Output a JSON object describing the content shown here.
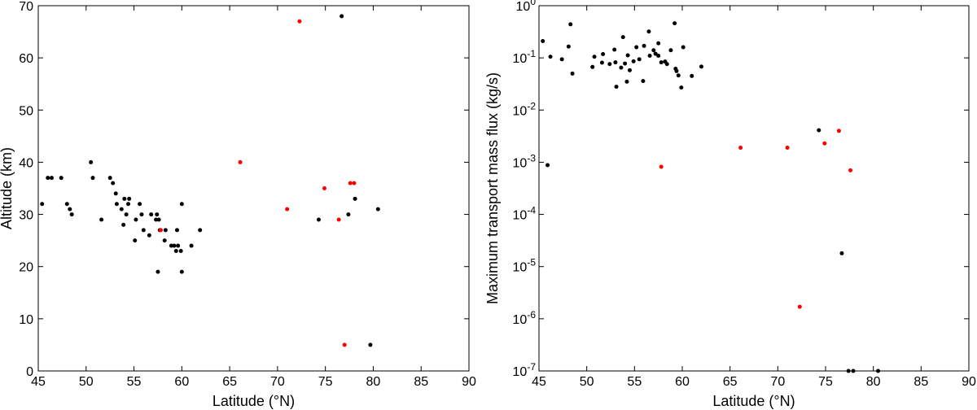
{
  "chart_data": [
    {
      "type": "scatter",
      "title": "",
      "xlabel": "Latitude (°N)",
      "ylabel": "Altitude (km)",
      "xlim": [
        45,
        90
      ],
      "ylim": [
        0,
        70
      ],
      "yscale": "linear",
      "grid": false,
      "x_ticks": [
        "45",
        "50",
        "55",
        "60",
        "65",
        "70",
        "75",
        "80",
        "85",
        "90"
      ],
      "y_ticks": [
        "0",
        "10",
        "20",
        "30",
        "40",
        "50",
        "60",
        "70"
      ],
      "series": [
        {
          "color": "#000000",
          "points": [
            [
              45.4,
              32
            ],
            [
              46.0,
              37
            ],
            [
              46.4,
              37
            ],
            [
              47.4,
              37
            ],
            [
              48.0,
              32
            ],
            [
              48.3,
              31
            ],
            [
              48.5,
              30
            ],
            [
              50.5,
              40
            ],
            [
              50.7,
              37
            ],
            [
              51.6,
              29
            ],
            [
              52.5,
              37
            ],
            [
              52.8,
              36
            ],
            [
              53.1,
              34
            ],
            [
              53.2,
              32
            ],
            [
              53.7,
              31
            ],
            [
              53.9,
              28
            ],
            [
              54.0,
              33
            ],
            [
              54.2,
              30
            ],
            [
              54.4,
              32
            ],
            [
              54.5,
              33
            ],
            [
              55.1,
              25
            ],
            [
              55.2,
              29
            ],
            [
              55.6,
              32
            ],
            [
              55.8,
              30
            ],
            [
              56.0,
              27
            ],
            [
              56.6,
              26
            ],
            [
              56.8,
              30
            ],
            [
              57.3,
              29
            ],
            [
              57.4,
              30
            ],
            [
              57.5,
              19
            ],
            [
              57.6,
              29
            ],
            [
              57.7,
              27
            ],
            [
              58.2,
              25
            ],
            [
              58.3,
              27
            ],
            [
              58.9,
              24
            ],
            [
              59.2,
              24
            ],
            [
              59.4,
              23
            ],
            [
              59.5,
              27
            ],
            [
              59.6,
              24
            ],
            [
              59.9,
              23
            ],
            [
              60.0,
              32
            ],
            [
              60.0,
              19
            ],
            [
              61.0,
              24
            ],
            [
              61.9,
              27
            ],
            [
              74.3,
              29
            ],
            [
              76.7,
              68
            ],
            [
              77.4,
              30
            ],
            [
              78.1,
              33
            ],
            [
              79.7,
              5
            ],
            [
              80.5,
              31
            ]
          ]
        },
        {
          "color": "#ff0000",
          "points": [
            [
              57.8,
              27
            ],
            [
              66.1,
              40
            ],
            [
              71.0,
              31
            ],
            [
              72.3,
              67
            ],
            [
              74.9,
              35
            ],
            [
              76.4,
              29
            ],
            [
              77.0,
              5
            ],
            [
              77.6,
              36
            ],
            [
              78.0,
              36
            ]
          ]
        }
      ]
    },
    {
      "type": "scatter",
      "title": "",
      "xlabel": "Latitude (°N)",
      "ylabel": "Maximum transport mass flux (kg/s)",
      "xlim": [
        45,
        90
      ],
      "ylim": [
        1e-07,
        1
      ],
      "yscale": "log",
      "grid": false,
      "x_ticks": [
        "45",
        "50",
        "55",
        "60",
        "65",
        "70",
        "75",
        "80",
        "85",
        "90"
      ],
      "y_ticks": [
        {
          "base": "10",
          "exp": "-7"
        },
        {
          "base": "10",
          "exp": "-6"
        },
        {
          "base": "10",
          "exp": "-5"
        },
        {
          "base": "10",
          "exp": "-4"
        },
        {
          "base": "10",
          "exp": "-3"
        },
        {
          "base": "10",
          "exp": "-2"
        },
        {
          "base": "10",
          "exp": "-1"
        },
        {
          "base": "10",
          "exp": "0"
        }
      ],
      "series": [
        {
          "color": "#000000",
          "points": [
            [
              45.4,
              0.21
            ],
            [
              45.9,
              0.00088
            ],
            [
              46.2,
              0.105
            ],
            [
              47.4,
              0.094
            ],
            [
              48.1,
              0.165
            ],
            [
              48.3,
              0.44
            ],
            [
              48.5,
              0.05
            ],
            [
              50.6,
              0.067
            ],
            [
              50.8,
              0.105
            ],
            [
              51.6,
              0.081
            ],
            [
              51.7,
              0.118
            ],
            [
              52.4,
              0.076
            ],
            [
              52.9,
              0.144
            ],
            [
              53.0,
              0.082
            ],
            [
              53.1,
              0.028
            ],
            [
              53.6,
              0.065
            ],
            [
              53.8,
              0.25
            ],
            [
              54.0,
              0.078
            ],
            [
              54.2,
              0.035
            ],
            [
              54.3,
              0.112
            ],
            [
              54.5,
              0.058
            ],
            [
              54.9,
              0.086
            ],
            [
              55.2,
              0.16
            ],
            [
              55.5,
              0.094
            ],
            [
              55.9,
              0.036
            ],
            [
              56.0,
              0.17
            ],
            [
              56.5,
              0.32
            ],
            [
              56.6,
              0.11
            ],
            [
              57.0,
              0.14
            ],
            [
              57.2,
              0.12
            ],
            [
              57.5,
              0.19
            ],
            [
              57.5,
              0.11
            ],
            [
              57.8,
              0.082
            ],
            [
              58.2,
              0.085
            ],
            [
              58.4,
              0.076
            ],
            [
              58.8,
              0.14
            ],
            [
              59.2,
              0.46
            ],
            [
              59.3,
              0.062
            ],
            [
              59.4,
              0.056
            ],
            [
              59.6,
              0.046
            ],
            [
              59.9,
              0.027
            ],
            [
              60.1,
              0.16
            ],
            [
              61.0,
              0.045
            ],
            [
              62.0,
              0.068
            ],
            [
              74.3,
              0.0041
            ],
            [
              76.7,
              1.8e-05
            ],
            [
              77.4,
              1e-07
            ],
            [
              77.9,
              1e-07
            ],
            [
              80.5,
              1e-07
            ]
          ]
        },
        {
          "color": "#ff0000",
          "points": [
            [
              57.8,
              0.00082
            ],
            [
              66.1,
              0.0019
            ],
            [
              71.0,
              0.0019
            ],
            [
              72.3,
              1.7e-06
            ],
            [
              74.9,
              0.0023
            ],
            [
              76.4,
              0.004
            ],
            [
              77.6,
              0.0007
            ]
          ]
        }
      ]
    }
  ]
}
